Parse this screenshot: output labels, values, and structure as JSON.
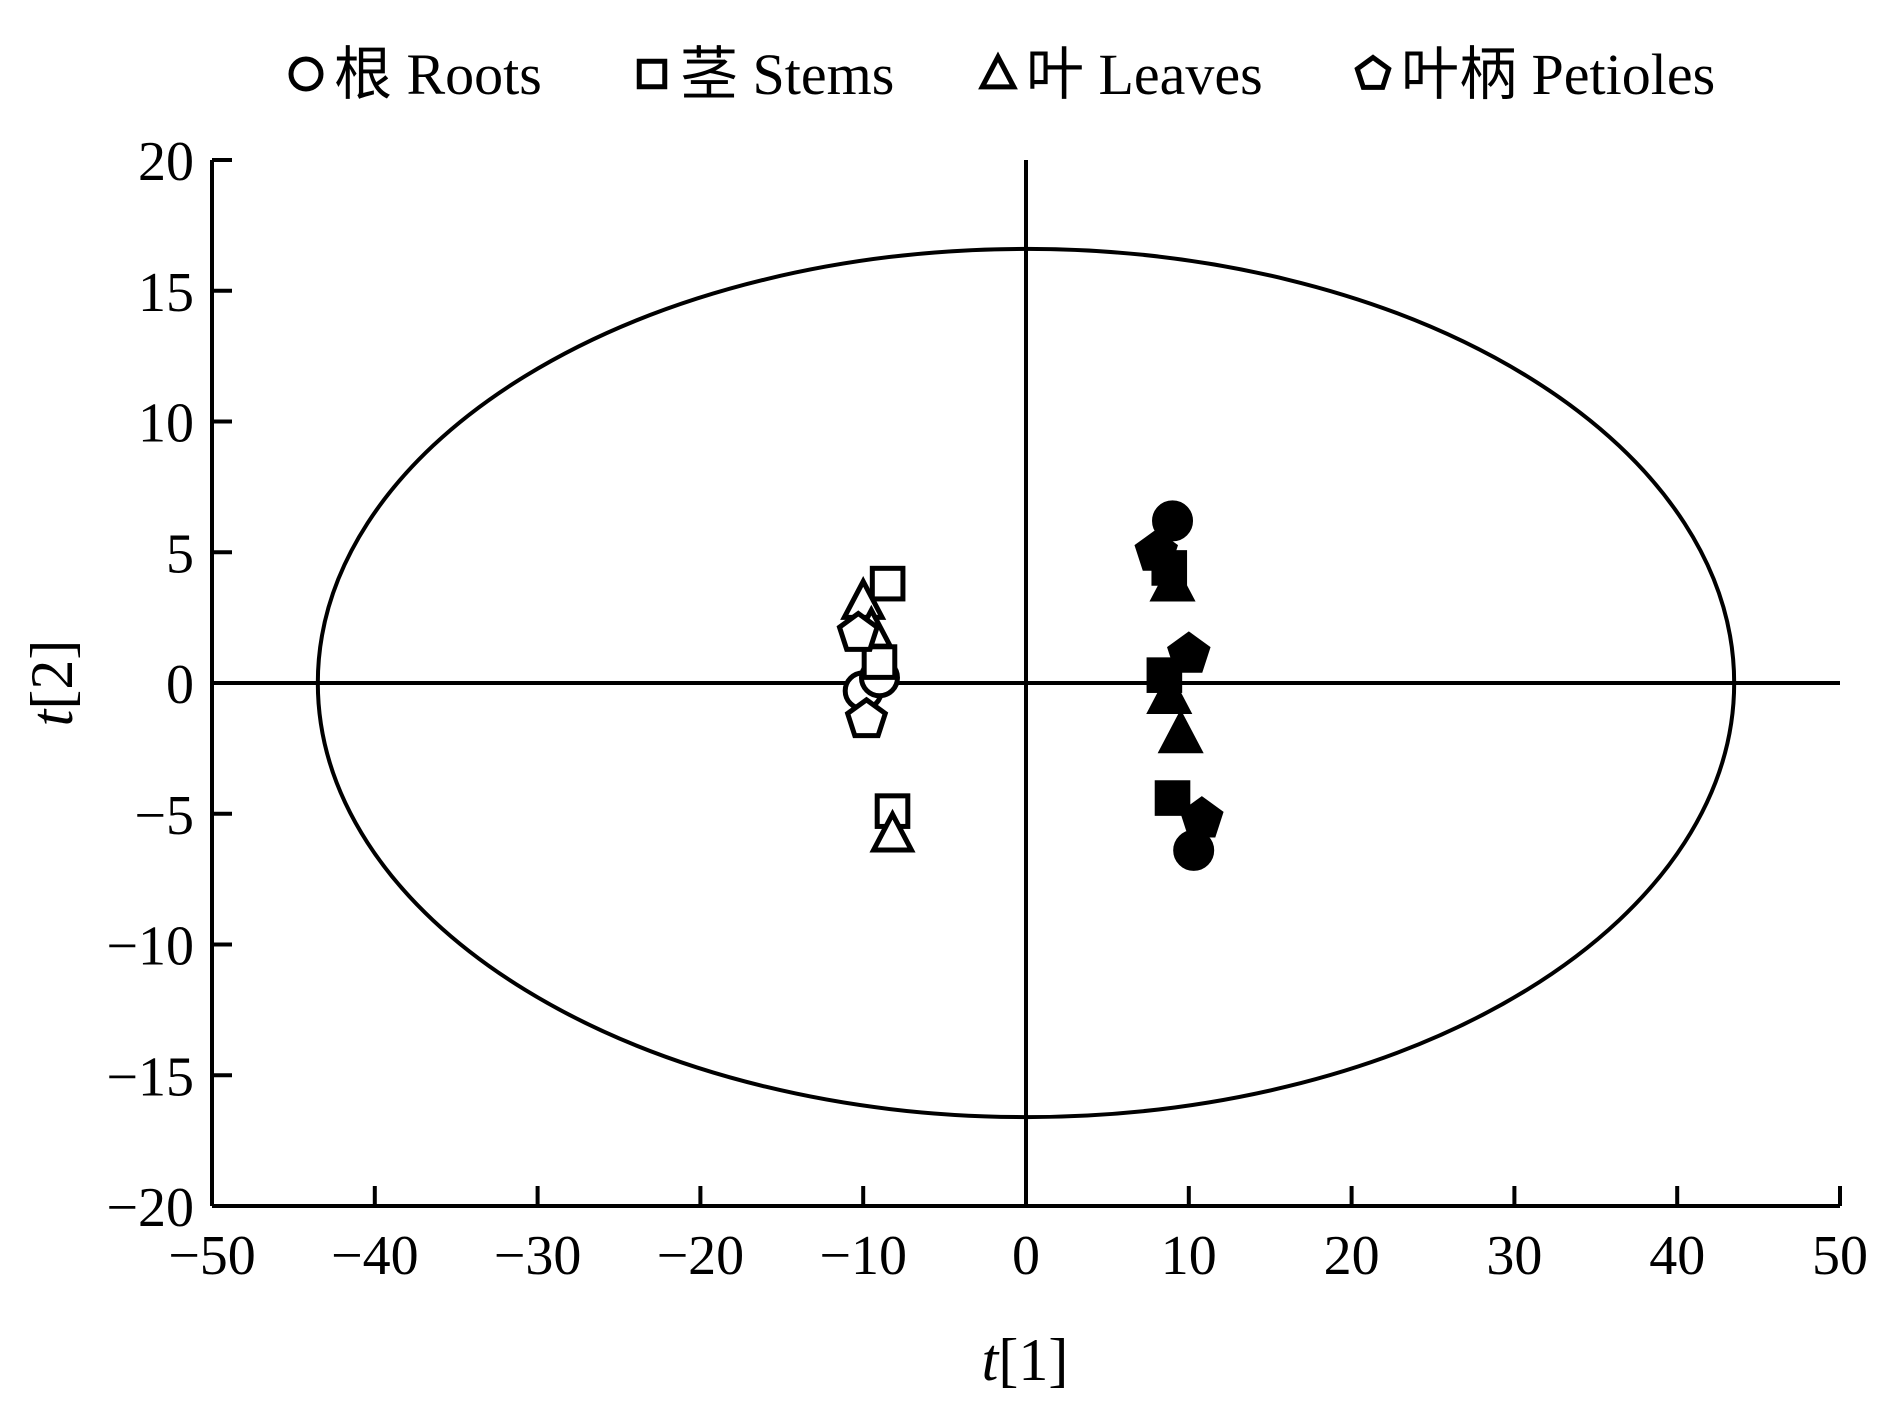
{
  "chart_data": {
    "type": "scatter",
    "xlabel": {
      "italic": "t",
      "rest": "[1]"
    },
    "ylabel": {
      "italic": "t",
      "rest": "[2]"
    },
    "xlim": [
      -50,
      50
    ],
    "ylim": [
      -20,
      20
    ],
    "x_ticks": [
      "−50",
      "−40",
      "−30",
      "−20",
      "−10",
      "0",
      "10",
      "20",
      "30",
      "40",
      "50"
    ],
    "y_ticks": [
      "20",
      "15",
      "10",
      "5",
      "0",
      "−5",
      "−10",
      "−15",
      "−20"
    ],
    "legend_position": "top",
    "legend": [
      {
        "label": "根 Roots",
        "marker": "circle"
      },
      {
        "label": "茎 Stems",
        "marker": "square"
      },
      {
        "label": "叶 Leaves",
        "marker": "triangle"
      },
      {
        "label": "叶柄 Petioles",
        "marker": "pentagon"
      }
    ],
    "ellipse": {
      "center": [
        0,
        0
      ],
      "rx": 43.5,
      "ry": 16.6
    },
    "reference_lines": {
      "x": 0,
      "y": 0
    },
    "series": [
      {
        "group": "Roots",
        "marker": "circle",
        "fill": "open",
        "x": [
          -10,
          -9
        ],
        "y": [
          -0.3,
          0.2
        ]
      },
      {
        "group": "Roots",
        "marker": "circle",
        "fill": "filled",
        "x": [
          9,
          10.3
        ],
        "y": [
          6.2,
          -6.4
        ]
      },
      {
        "group": "Stems",
        "marker": "square",
        "fill": "open",
        "x": [
          -8.5,
          -9,
          -8.2
        ],
        "y": [
          3.8,
          0.8,
          -4.9
        ]
      },
      {
        "group": "Stems",
        "marker": "square",
        "fill": "filled",
        "x": [
          8.8,
          8.5,
          9
        ],
        "y": [
          4.4,
          0.3,
          -4.4
        ]
      },
      {
        "group": "Leaves",
        "marker": "triangle",
        "fill": "open",
        "x": [
          -10,
          -9.5,
          -8.2
        ],
        "y": [
          3.1,
          2,
          -5.8
        ]
      },
      {
        "group": "Leaves",
        "marker": "triangle",
        "fill": "filled",
        "x": [
          9,
          8.8,
          9.5
        ],
        "y": [
          3.8,
          -0.5,
          -2
        ]
      },
      {
        "group": "Petioles",
        "marker": "pentagon",
        "fill": "open",
        "x": [
          -10.3,
          -9.8
        ],
        "y": [
          1.9,
          -1.4
        ]
      },
      {
        "group": "Petioles",
        "marker": "pentagon",
        "fill": "filled",
        "x": [
          8,
          10,
          10.8
        ],
        "y": [
          5,
          1.1,
          -5.2
        ]
      }
    ]
  }
}
